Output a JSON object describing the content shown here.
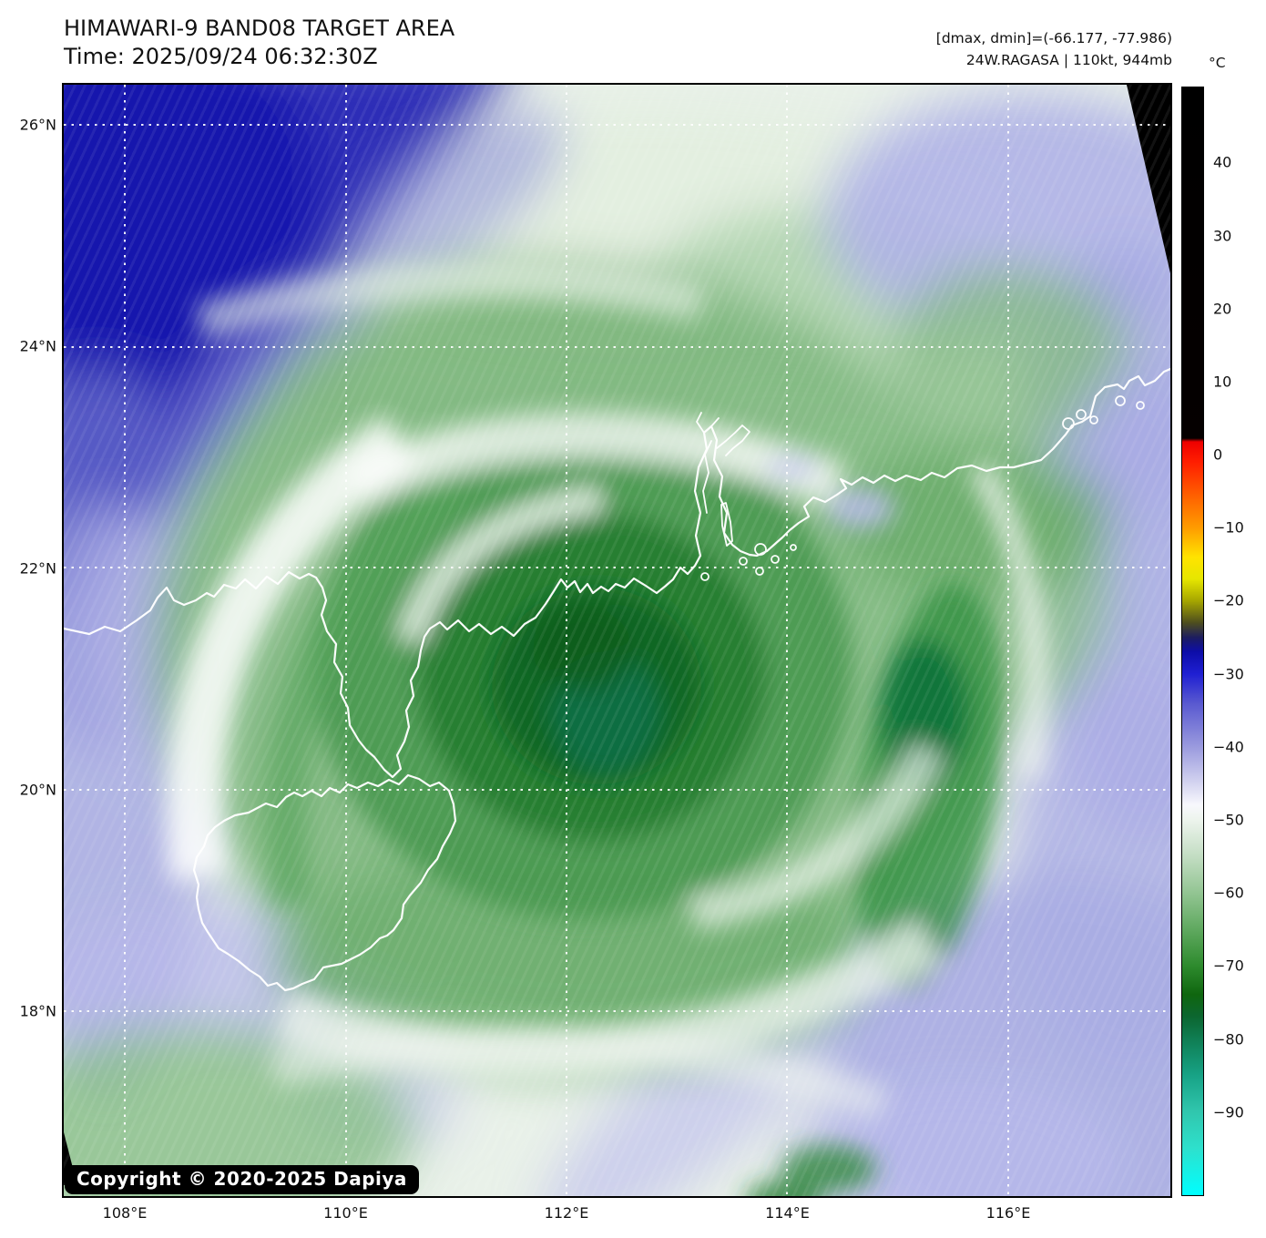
{
  "header": {
    "title": "HIMAWARI-9 BAND08 TARGET AREA",
    "time": "Time: 2025/09/24 06:32:30Z"
  },
  "info": {
    "dminmax": "[dmax, dmin]=(-66.177, -77.986)",
    "storm": "24W.RAGASA | 110kt, 944mb"
  },
  "map": {
    "copyright": "Copyright © 2020-2025 Dapiya",
    "coastline_color": "#ffffff",
    "gridline_color": "#ffffff",
    "nodata_color": "#000000"
  },
  "axes": {
    "lat": [
      {
        "label": "26°N",
        "deg": 26
      },
      {
        "label": "24°N",
        "deg": 24
      },
      {
        "label": "22°N",
        "deg": 22
      },
      {
        "label": "20°N",
        "deg": 20
      },
      {
        "label": "18°N",
        "deg": 18
      }
    ],
    "lon": [
      {
        "label": "108°E",
        "deg": 108
      },
      {
        "label": "110°E",
        "deg": 110
      },
      {
        "label": "112°E",
        "deg": 112
      },
      {
        "label": "114°E",
        "deg": 114
      },
      {
        "label": "116°E",
        "deg": 116
      }
    ]
  },
  "colorbar": {
    "unit": "°C",
    "vmax": 50.4,
    "vmin": -101.5,
    "ticks": [
      {
        "label": "40",
        "v": 40
      },
      {
        "label": "30",
        "v": 30
      },
      {
        "label": "20",
        "v": 20
      },
      {
        "label": "10",
        "v": 10
      },
      {
        "label": "0",
        "v": 0
      },
      {
        "label": "−10",
        "v": -10
      },
      {
        "label": "−20",
        "v": -20
      },
      {
        "label": "−30",
        "v": -30
      },
      {
        "label": "−40",
        "v": -40
      },
      {
        "label": "−50",
        "v": -50
      },
      {
        "label": "−60",
        "v": -60
      },
      {
        "label": "−70",
        "v": -70
      },
      {
        "label": "−80",
        "v": -80
      },
      {
        "label": "−90",
        "v": -90
      }
    ],
    "stops": [
      {
        "v": 50.4,
        "c": "#000000"
      },
      {
        "v": 2.3,
        "c": "#050000"
      },
      {
        "v": 1.8,
        "c": "#ee0000"
      },
      {
        "v": -1,
        "c": "#ff1e00"
      },
      {
        "v": -6,
        "c": "#ff6600"
      },
      {
        "v": -10,
        "c": "#ff9c00"
      },
      {
        "v": -14,
        "c": "#ffe300"
      },
      {
        "v": -17,
        "c": "#e6e600"
      },
      {
        "v": -20,
        "c": "#a6a600"
      },
      {
        "v": -23,
        "c": "#4e4e1e"
      },
      {
        "v": -25,
        "c": "#1d1d5e"
      },
      {
        "v": -27,
        "c": "#0d0da8"
      },
      {
        "v": -30,
        "c": "#1f1fd2"
      },
      {
        "v": -34,
        "c": "#5858d0"
      },
      {
        "v": -40,
        "c": "#9a9ade"
      },
      {
        "v": -45,
        "c": "#d4d4f0"
      },
      {
        "v": -48,
        "c": "#f8f8fd"
      },
      {
        "v": -50,
        "c": "#edf4ed"
      },
      {
        "v": -55,
        "c": "#c3ddc3"
      },
      {
        "v": -60,
        "c": "#93c593"
      },
      {
        "v": -65,
        "c": "#60a960"
      },
      {
        "v": -70,
        "c": "#2e8b2e"
      },
      {
        "v": -74,
        "c": "#0f660f"
      },
      {
        "v": -77,
        "c": "#0c6630"
      },
      {
        "v": -80,
        "c": "#0f7d52"
      },
      {
        "v": -85,
        "c": "#17a285"
      },
      {
        "v": -90,
        "c": "#30c6ad"
      },
      {
        "v": -95,
        "c": "#2ee0cc"
      },
      {
        "v": -101.5,
        "c": "#00ffff"
      }
    ]
  }
}
